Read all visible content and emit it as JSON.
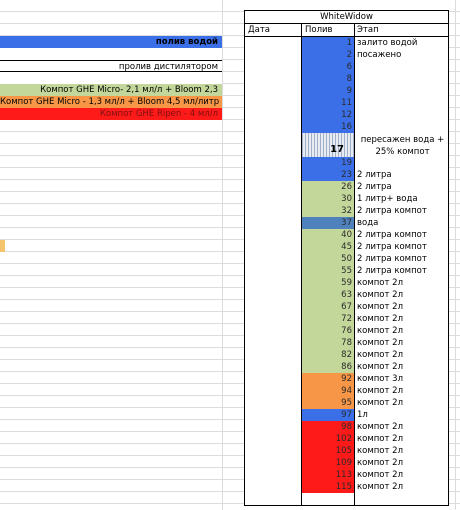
{
  "colors": {
    "blue": "#3a6fe8",
    "green": "#c4d79b",
    "orange": "#f79646",
    "red": "#ff1a1a",
    "steelblue": "#4f81bd"
  },
  "legend": [
    {
      "label": "полив водой",
      "color": "#3a6fe8",
      "bold": true
    },
    {
      "label": "",
      "color": "#ffffff"
    },
    {
      "label": "пролив дистилятором",
      "color": "#ffffff",
      "thin": true
    },
    {
      "label": "",
      "color": "#ffffff"
    },
    {
      "label": "Компот GHE Micro-  2,1 мл/л  + Bloom 2,3",
      "color": "#c4d79b"
    },
    {
      "label": "Компот GHE Micro - 1,3 мл/л + Bloom 4,5 мл/литр",
      "color": "#f79646"
    },
    {
      "label": "Компот GHE Ripen - 4 мл/л",
      "color": "#ff1a1a"
    }
  ],
  "table": {
    "title": "WhiteWidow",
    "col_date": "Дата",
    "col_poliv": "Полив",
    "col_etap": "Этап",
    "rows": [
      {
        "poliv": "1",
        "etap": "залито водой",
        "color": "#3a6fe8"
      },
      {
        "poliv": "2",
        "etap": "посажено",
        "color": "#3a6fe8"
      },
      {
        "poliv": "6",
        "etap": "",
        "color": "#3a6fe8"
      },
      {
        "poliv": "8",
        "etap": "",
        "color": "#3a6fe8"
      },
      {
        "poliv": "9",
        "etap": "",
        "color": "#3a6fe8"
      },
      {
        "poliv": "11",
        "etap": "",
        "color": "#3a6fe8"
      },
      {
        "poliv": "12",
        "etap": "",
        "color": "#3a6fe8"
      },
      {
        "poliv": "16",
        "etap": "",
        "color": "#3a6fe8"
      },
      {
        "poliv": "17",
        "etap": "пересажен вода + 25% компот",
        "color": "hatch",
        "tall": true
      },
      {
        "poliv": "19",
        "etap": "",
        "color": "#3a6fe8"
      },
      {
        "poliv": "23",
        "etap": "2 литра",
        "color": "#3a6fe8"
      },
      {
        "poliv": "26",
        "etap": "2 литра",
        "color": "#c4d79b"
      },
      {
        "poliv": "30",
        "etap": "1 литр+ вода",
        "color": "#c4d79b"
      },
      {
        "poliv": "32",
        "etap": "2 литра компот",
        "color": "#c4d79b"
      },
      {
        "poliv": "37",
        "etap": "вода",
        "color": "#4f81bd"
      },
      {
        "poliv": "40",
        "etap": "2 литра компот",
        "color": "#c4d79b"
      },
      {
        "poliv": "45",
        "etap": "2 литра компот",
        "color": "#c4d79b"
      },
      {
        "poliv": "50",
        "etap": "2 литра компот",
        "color": "#c4d79b"
      },
      {
        "poliv": "55",
        "etap": "2 литра компот",
        "color": "#c4d79b"
      },
      {
        "poliv": "59",
        "etap": "компот 2л",
        "color": "#c4d79b"
      },
      {
        "poliv": "63",
        "etap": "компот 2л",
        "color": "#c4d79b"
      },
      {
        "poliv": "67",
        "etap": "компот 2л",
        "color": "#c4d79b"
      },
      {
        "poliv": "72",
        "etap": "компот 2л",
        "color": "#c4d79b"
      },
      {
        "poliv": "76",
        "etap": "компот 2л",
        "color": "#c4d79b"
      },
      {
        "poliv": "78",
        "etap": "компот 2л",
        "color": "#c4d79b"
      },
      {
        "poliv": "82",
        "etap": "компот 2л",
        "color": "#c4d79b"
      },
      {
        "poliv": "86",
        "etap": "компот 2л",
        "color": "#c4d79b"
      },
      {
        "poliv": "92",
        "etap": "компот 3л",
        "color": "#f79646"
      },
      {
        "poliv": "94",
        "etap": "компот 2л",
        "color": "#f79646"
      },
      {
        "poliv": "95",
        "etap": "компот 2л",
        "color": "#f79646"
      },
      {
        "poliv": "97",
        "etap": " 1л",
        "color": "#3a6fe8"
      },
      {
        "poliv": "98",
        "etap": "компот 2л",
        "color": "#ff1a1a"
      },
      {
        "poliv": "102",
        "etap": "компот 2л",
        "color": "#ff1a1a"
      },
      {
        "poliv": "105",
        "etap": "компот 2л",
        "color": "#ff1a1a"
      },
      {
        "poliv": "109",
        "etap": "компот 2л",
        "color": "#ff1a1a"
      },
      {
        "poliv": "113",
        "etap": "компот 2л",
        "color": "#ff1a1a"
      },
      {
        "poliv": "115",
        "etap": "компот 2л",
        "color": "#ff1a1a"
      }
    ]
  }
}
